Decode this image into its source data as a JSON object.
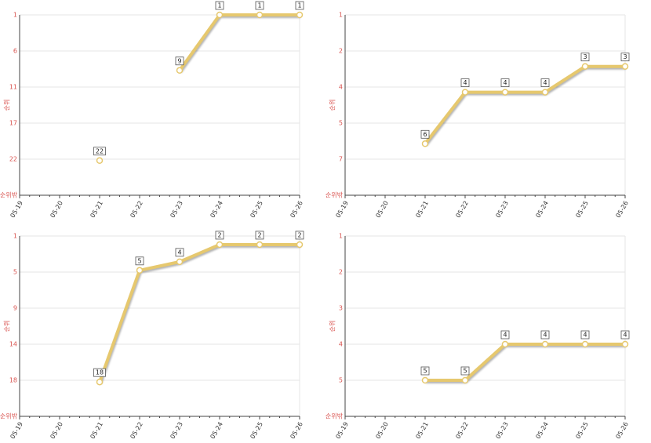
{
  "chart_data": [
    {
      "type": "line",
      "ylabel": "순위",
      "inverted": true,
      "grid": true,
      "categories": [
        "05-19",
        "05-20",
        "05-21",
        "05-22",
        "05-23",
        "05-24",
        "05-25",
        "05-26"
      ],
      "series": [
        {
          "color": "#e6c86e",
          "values": [
            null,
            null,
            22,
            null,
            9,
            1,
            1,
            1
          ]
        }
      ],
      "ylim": [
        1,
        27
      ],
      "yticks": [
        1,
        {
          "value": 6.2,
          "label": "6"
        },
        {
          "value": 11.4,
          "label": "11"
        },
        {
          "value": 16.6,
          "label": "17"
        },
        {
          "value": 21.8,
          "label": "22"
        },
        {
          "value": 27,
          "label": "순위밖"
        }
      ]
    },
    {
      "type": "line",
      "ylabel": "순위",
      "inverted": true,
      "grid": true,
      "categories": [
        "05-19",
        "05-20",
        "05-21",
        "05-22",
        "05-23",
        "05-24",
        "05-25",
        "05-26"
      ],
      "series": [
        {
          "color": "#e6c86e",
          "values": [
            null,
            null,
            6,
            4,
            4,
            4,
            3,
            3
          ]
        }
      ],
      "ylim": [
        1,
        8
      ],
      "yticks": [
        1,
        {
          "value": 2.4,
          "label": "2"
        },
        {
          "value": 3.8,
          "label": "4"
        },
        {
          "value": 5.2,
          "label": "5"
        },
        {
          "value": 6.6,
          "label": "7"
        },
        {
          "value": 8,
          "label": "순위밖"
        }
      ]
    },
    {
      "type": "line",
      "ylabel": "순위",
      "inverted": true,
      "grid": true,
      "categories": [
        "05-19",
        "05-20",
        "05-21",
        "05-22",
        "05-23",
        "05-24",
        "05-25",
        "05-26"
      ],
      "series": [
        {
          "color": "#e6c86e",
          "values": [
            null,
            null,
            18,
            5,
            4,
            2,
            2,
            2
          ]
        }
      ],
      "ylim": [
        1,
        22
      ],
      "yticks": [
        1,
        {
          "value": 5.2,
          "label": "5"
        },
        {
          "value": 9.4,
          "label": "9"
        },
        {
          "value": 13.6,
          "label": "14"
        },
        {
          "value": 17.8,
          "label": "18"
        },
        {
          "value": 22,
          "label": "순위밖"
        }
      ]
    },
    {
      "type": "line",
      "ylabel": "순위",
      "inverted": true,
      "grid": true,
      "categories": [
        "05-19",
        "05-20",
        "05-21",
        "05-22",
        "05-23",
        "05-24",
        "05-25",
        "05-26"
      ],
      "series": [
        {
          "color": "#e6c86e",
          "values": [
            null,
            null,
            5,
            5,
            4,
            4,
            4,
            4
          ]
        }
      ],
      "ylim": [
        1,
        6
      ],
      "yticks": [
        1,
        2,
        3,
        4,
        5,
        {
          "value": 6,
          "label": "순위밖"
        }
      ]
    }
  ]
}
